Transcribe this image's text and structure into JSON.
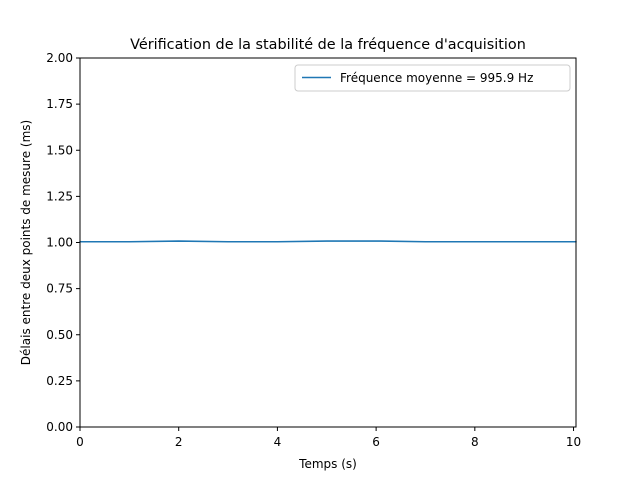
{
  "chart_data": {
    "type": "line",
    "title": "Vérification de la stabilité de la fréquence d'acquisition",
    "xlabel": "Temps (s)",
    "ylabel": "Délais entre deux points de mesure (ms)",
    "xlim": [
      0,
      10.05
    ],
    "ylim": [
      0,
      2.0
    ],
    "xticks": [
      0,
      2,
      4,
      6,
      8,
      10
    ],
    "xtick_labels": [
      "0",
      "2",
      "4",
      "6",
      "8",
      "10"
    ],
    "yticks": [
      0,
      0.25,
      0.5,
      0.75,
      1.0,
      1.25,
      1.5,
      1.75,
      2.0
    ],
    "ytick_labels": [
      "0.00",
      "0.25",
      "0.50",
      "0.75",
      "1.00",
      "1.25",
      "1.50",
      "1.75",
      "2.00"
    ],
    "grid": false,
    "legend_position": "upper right",
    "series": [
      {
        "name": "Fréquence moyenne = 995.9 Hz",
        "color": "#1f77b4",
        "x": [
          0,
          1,
          2,
          3,
          4,
          5,
          6,
          7,
          8,
          9,
          10.05
        ],
        "y": [
          1.004,
          1.004,
          1.008,
          1.004,
          1.004,
          1.008,
          1.008,
          1.004,
          1.004,
          1.004,
          1.004
        ]
      }
    ]
  }
}
